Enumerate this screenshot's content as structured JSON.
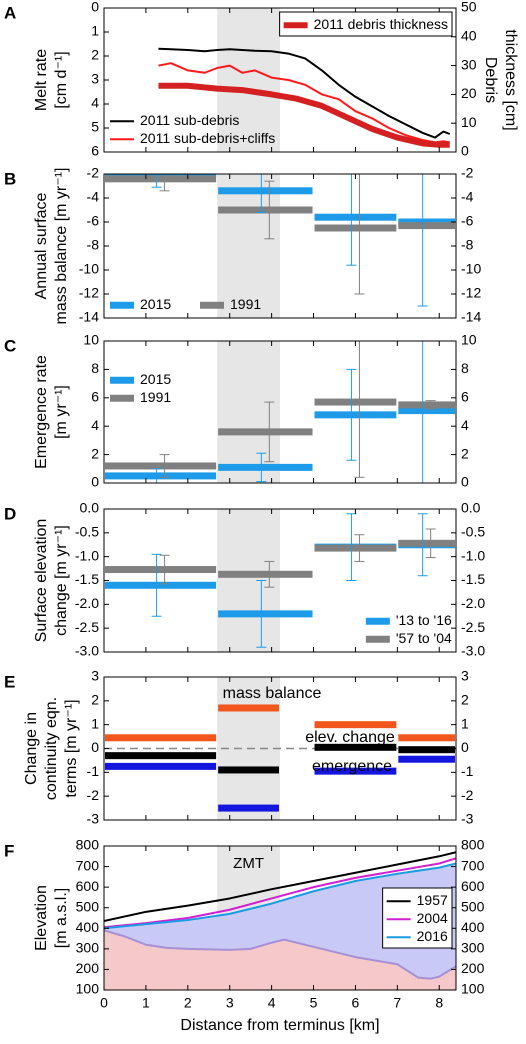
{
  "chart_data": [
    {
      "panel": "A",
      "type": "line",
      "ylabel": [
        "Melt rate",
        "[cm d⁻¹]"
      ],
      "y2label": [
        "Debris",
        "thickness [cm]"
      ],
      "xlim": [
        0,
        8.4
      ],
      "xticks": [
        0,
        1,
        2,
        3,
        4,
        5,
        6,
        7,
        8
      ],
      "ylim": [
        6,
        0
      ],
      "yticks": [
        0,
        1,
        2,
        3,
        4,
        5,
        6
      ],
      "y2lim": [
        0,
        50
      ],
      "y2ticks": [
        0,
        10,
        20,
        30,
        40,
        50
      ],
      "shade": [
        2.7,
        4.2
      ],
      "legend": "lower left",
      "legend2": "upper right",
      "series": [
        {
          "name": "2011 sub-debris",
          "color": "#000000",
          "x": [
            1.3,
            1.6,
            2.0,
            2.4,
            2.7,
            3.0,
            3.3,
            3.6,
            4.0,
            4.4,
            4.8,
            5.2,
            5.6,
            6.0,
            6.4,
            6.8,
            7.2,
            7.6,
            7.9,
            8.1,
            8.25
          ],
          "values": [
            1.7,
            1.72,
            1.75,
            1.8,
            1.75,
            1.72,
            1.75,
            1.78,
            1.8,
            1.9,
            2.1,
            2.6,
            3.2,
            3.7,
            4.1,
            4.5,
            4.85,
            5.2,
            5.4,
            5.15,
            5.25
          ]
        },
        {
          "name": "2011 sub-debris+cliffs",
          "color": "#ff1a1a",
          "x": [
            1.3,
            1.6,
            2.0,
            2.4,
            2.7,
            3.0,
            3.3,
            3.6,
            4.0,
            4.4,
            4.8,
            5.2,
            5.6,
            6.0,
            6.4,
            6.8,
            7.2,
            7.6,
            7.9,
            8.1,
            8.25
          ],
          "values": [
            2.4,
            2.3,
            2.6,
            2.7,
            2.5,
            2.4,
            2.7,
            2.6,
            2.9,
            3.0,
            3.2,
            3.6,
            3.8,
            4.3,
            4.6,
            5.0,
            5.3,
            5.5,
            5.6,
            5.55,
            5.6
          ]
        },
        {
          "name": "2011 debris thickness",
          "color": "#d42020",
          "axis": "y2",
          "linewidth": 6,
          "x": [
            1.3,
            2.0,
            2.7,
            3.3,
            4.0,
            4.6,
            5.2,
            5.8,
            6.4,
            7.0,
            7.6,
            8.0,
            8.25
          ],
          "values": [
            23,
            23,
            22,
            21.5,
            20,
            18.5,
            16,
            12,
            8,
            5,
            3,
            2.5,
            2.5
          ]
        }
      ]
    },
    {
      "panel": "B",
      "type": "step-bar",
      "ylabel": [
        "Annual surface",
        "mass balance [m yr⁻¹]"
      ],
      "xlim": [
        0,
        8.4
      ],
      "xticks": [
        0,
        1,
        2,
        3,
        4,
        5,
        6,
        7,
        8
      ],
      "ylim": [
        -14,
        -2
      ],
      "yticks": [
        -14,
        -12,
        -10,
        -8,
        -6,
        -4,
        -2
      ],
      "y2lim": [
        -14,
        -2
      ],
      "y2ticks": [
        -14,
        -12,
        -10,
        -8,
        -6,
        -4,
        -2
      ],
      "shade": [
        2.7,
        4.2
      ],
      "legend": "lower left",
      "legend_ncol": 2,
      "spans": [
        [
          0,
          2.7
        ],
        [
          2.7,
          5
        ],
        [
          5,
          7
        ],
        [
          7,
          8.4
        ]
      ],
      "series": [
        {
          "name": "2015",
          "color": "#1e9be8",
          "values": [
            -2.0,
            -3.4,
            -5.6,
            -6.0
          ],
          "errors": [
            1.1,
            1.8,
            4.0,
            7.0
          ]
        },
        {
          "name": "1991",
          "color": "#808080",
          "values": [
            -2.4,
            -5.0,
            -6.5,
            -6.3
          ],
          "errors": [
            1.0,
            2.4,
            5.5,
            0.2
          ]
        }
      ]
    },
    {
      "panel": "C",
      "type": "step-bar",
      "ylabel": [
        "Emergence rate",
        "[m yr⁻¹]"
      ],
      "xlim": [
        0,
        8.4
      ],
      "xticks": [
        0,
        1,
        2,
        3,
        4,
        5,
        6,
        7,
        8
      ],
      "ylim": [
        0,
        10
      ],
      "yticks": [
        0,
        2,
        4,
        6,
        8,
        10
      ],
      "y2lim": [
        0,
        10
      ],
      "y2ticks": [
        0,
        2,
        4,
        6,
        8,
        10
      ],
      "shade": [
        2.7,
        4.2
      ],
      "legend": "upper left",
      "spans": [
        [
          0,
          2.7
        ],
        [
          2.7,
          5
        ],
        [
          5,
          7
        ],
        [
          7,
          8.4
        ]
      ],
      "series": [
        {
          "name": "2015",
          "color": "#1e9be8",
          "values": [
            0.5,
            1.1,
            4.8,
            5.1
          ],
          "errors": [
            0.5,
            1.0,
            3.2,
            5.1
          ]
        },
        {
          "name": "1991",
          "color": "#808080",
          "values": [
            1.2,
            3.6,
            5.7,
            5.5
          ],
          "errors": [
            0.8,
            2.1,
            5.3,
            0.3
          ]
        }
      ]
    },
    {
      "panel": "D",
      "type": "step-bar",
      "ylabel": [
        "Surface elevation",
        "change [m yr⁻¹]"
      ],
      "xlim": [
        0,
        8.4
      ],
      "xticks": [
        0,
        1,
        2,
        3,
        4,
        5,
        6,
        7,
        8
      ],
      "ylim": [
        -3,
        0
      ],
      "yticks": [
        {
          "value": -3,
          "label": "-3.0"
        },
        -2.5,
        {
          "value": -2,
          "label": "-2.0"
        },
        -1.5,
        {
          "value": -1,
          "label": "-1.0"
        },
        -0.5,
        {
          "value": 0,
          "label": "0.0"
        }
      ],
      "y2lim": [
        -3,
        0
      ],
      "y2ticks": [
        {
          "value": -3,
          "label": "-3.0"
        },
        -2.5,
        {
          "value": -2,
          "label": "-2.0"
        },
        -1.5,
        {
          "value": -1,
          "label": "-1.0"
        },
        -0.5,
        {
          "value": 0,
          "label": "0.0"
        }
      ],
      "shade": [
        2.7,
        4.2
      ],
      "legend": "lower right",
      "spans": [
        [
          0,
          2.7
        ],
        [
          2.7,
          5
        ],
        [
          5,
          7
        ],
        [
          7,
          8.4
        ]
      ],
      "series": [
        {
          "name": "'13 to '16",
          "color": "#1e9be8",
          "values": [
            -1.6,
            -2.2,
            -0.8,
            -0.75
          ],
          "errors": [
            0.65,
            0.7,
            0.7,
            0.65
          ]
        },
        {
          "name": "'57 to '04",
          "color": "#808080",
          "values": [
            -1.27,
            -1.37,
            -0.82,
            -0.72
          ],
          "errors": [
            0.3,
            0.27,
            0.28,
            0.3
          ]
        }
      ]
    },
    {
      "panel": "E",
      "type": "step-bar",
      "ylabel": [
        "Change in",
        "continuity eqn.",
        "terms [m yr⁻¹]"
      ],
      "xlim": [
        0,
        8.4
      ],
      "xticks": [
        0,
        1,
        2,
        3,
        4,
        5,
        6,
        7,
        8
      ],
      "ylim": [
        -3,
        3
      ],
      "yticks": [
        -3,
        -2,
        -1,
        0,
        1,
        2,
        3
      ],
      "y2lim": [
        -3,
        3
      ],
      "y2ticks": [
        -3,
        -2,
        -1,
        0,
        1,
        2,
        3
      ],
      "shade": [
        2.7,
        4.2
      ],
      "legend": "inline",
      "zeroline": true,
      "spans": [
        [
          0,
          2.7
        ],
        [
          2.7,
          4.2
        ],
        [
          5,
          7
        ],
        [
          7,
          8.4
        ]
      ],
      "series": [
        {
          "name": "mass balance",
          "color": "#f2561d",
          "values": [
            0.45,
            1.7,
            1.0,
            0.45
          ]
        },
        {
          "name": "elev. change",
          "color": "#000000",
          "values": [
            -0.3,
            -0.9,
            0.05,
            -0.05
          ]
        },
        {
          "name": "emergence",
          "color": "#1515e0",
          "values": [
            -0.75,
            -2.5,
            -0.95,
            -0.45
          ]
        }
      ]
    },
    {
      "panel": "F",
      "type": "line",
      "ylabel": [
        "Elevation",
        "[m a.s.l.]"
      ],
      "xlabel": "Distance from terminus [km]",
      "annotation": "ZMT",
      "xlim": [
        0,
        8.4
      ],
      "xticks": [
        0,
        1,
        2,
        3,
        4,
        5,
        6,
        7,
        8
      ],
      "ylim": [
        100,
        800
      ],
      "yticks": [
        100,
        200,
        300,
        400,
        500,
        600,
        700,
        800
      ],
      "y2lim": [
        100,
        800
      ],
      "y2ticks": [
        100,
        200,
        300,
        400,
        500,
        600,
        700,
        800
      ],
      "shade": [
        2.7,
        4.2
      ],
      "legend": "center right",
      "series": [
        {
          "name": "1957",
          "color": "#000000",
          "x": [
            0,
            1,
            2,
            3,
            4,
            5,
            6,
            7,
            8,
            8.4
          ],
          "values": [
            435,
            480,
            510,
            545,
            590,
            630,
            670,
            710,
            750,
            770
          ]
        },
        {
          "name": "2004",
          "color": "#d11fd1",
          "x": [
            0,
            1,
            2,
            3,
            4,
            5,
            6,
            7,
            8,
            8.4
          ],
          "values": [
            405,
            425,
            450,
            490,
            545,
            600,
            645,
            680,
            715,
            740
          ]
        },
        {
          "name": "2016",
          "color": "#1a9be3",
          "fill": "#c9c9f5",
          "x": [
            0,
            1,
            2,
            3,
            4,
            5,
            6,
            7,
            8,
            8.4
          ],
          "values": [
            400,
            420,
            440,
            470,
            520,
            580,
            630,
            665,
            695,
            715
          ]
        },
        {
          "color": "#a68fd6",
          "fill": "#f5c9c9",
          "x": [
            0,
            0.5,
            1,
            1.5,
            2,
            3,
            3.5,
            4,
            4.3,
            5,
            6,
            7,
            7.5,
            7.8,
            8,
            8.4
          ],
          "values": [
            390,
            360,
            320,
            305,
            300,
            295,
            300,
            330,
            345,
            310,
            260,
            225,
            160,
            155,
            165,
            215
          ]
        }
      ]
    }
  ]
}
